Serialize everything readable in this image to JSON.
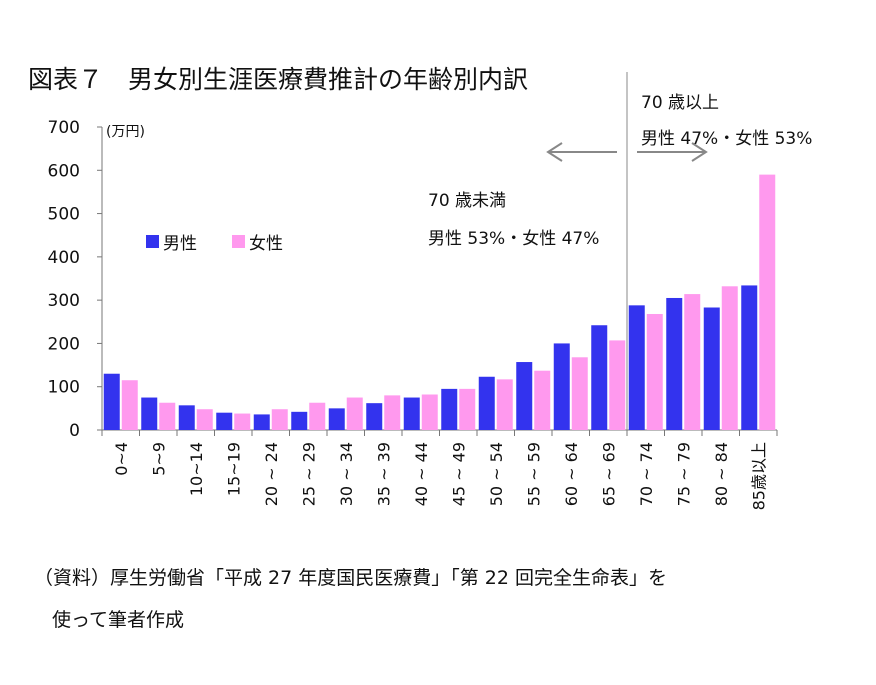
{
  "title": "図表７　男女別生涯医療費推計の年齢別内訳",
  "source": {
    "line1": "（資料）厚生労働省「平成 27 年度国民医療費」「第 22 回完全生命表」を",
    "line2": "使って筆者作成"
  },
  "annotations": {
    "under70_title": "70 歳未満",
    "under70_ratio": "男性 53%・女性 47%",
    "over70_title": "70 歳以上",
    "over70_ratio": "男性 47%・女性 53%"
  },
  "colors": {
    "male": "#3333ee",
    "female": "#ff99ee",
    "axis": "#777777",
    "divider": "#888888"
  },
  "chart_data": {
    "type": "bar",
    "ylabel": "(万円)",
    "ylim": [
      0,
      700
    ],
    "yticks": [
      0,
      100,
      200,
      300,
      400,
      500,
      600,
      700
    ],
    "categories": [
      "0~4",
      "5~9",
      "10~14",
      "15~19",
      "20 ~ 24",
      "25 ~ 29",
      "30 ~ 34",
      "35 ~ 39",
      "40 ~ 44",
      "45 ~ 49",
      "50 ~ 54",
      "55 ~ 59",
      "60 ~ 64",
      "65 ~ 69",
      "70 ~ 74",
      "75 ~ 79",
      "80 ~ 84",
      "85歳以上"
    ],
    "series": [
      {
        "name": "男性",
        "values": [
          130,
          75,
          57,
          40,
          36,
          42,
          50,
          62,
          75,
          95,
          123,
          157,
          200,
          242,
          288,
          305,
          283,
          334
        ]
      },
      {
        "name": "女性",
        "values": [
          115,
          63,
          48,
          38,
          48,
          63,
          75,
          80,
          82,
          95,
          117,
          137,
          168,
          207,
          268,
          314,
          332,
          590
        ]
      }
    ],
    "legend_position": "upper-left",
    "grid": false
  }
}
